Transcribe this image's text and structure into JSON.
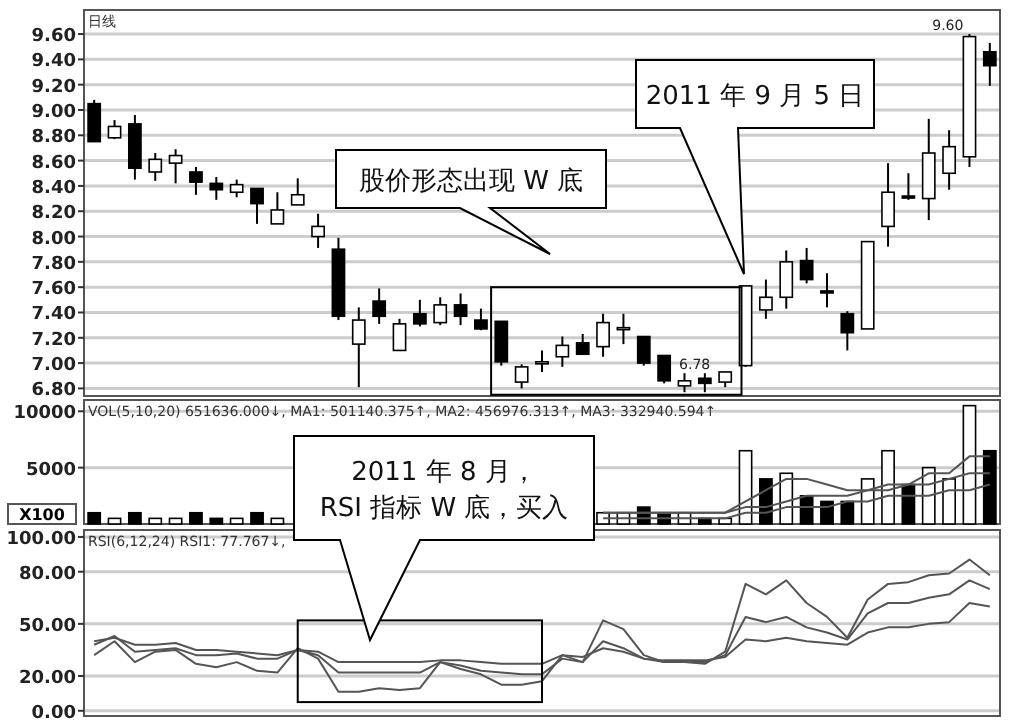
{
  "chart_data": [
    {
      "type": "candlestick",
      "title": "日线",
      "categories": [
        null,
        null,
        null,
        null,
        null,
        null,
        null,
        null,
        null,
        null,
        null,
        null,
        null,
        null,
        null,
        null,
        null,
        null,
        null,
        null,
        null,
        null,
        null,
        null,
        null,
        null,
        null,
        null,
        null,
        null,
        null,
        null,
        null,
        null,
        null,
        null,
        null,
        null,
        null,
        null,
        null,
        null,
        null,
        null,
        null
      ],
      "ohlc": [
        [
          9.05,
          9.08,
          8.75,
          8.75
        ],
        [
          8.78,
          8.92,
          8.77,
          8.87
        ],
        [
          8.89,
          8.96,
          8.45,
          8.54
        ],
        [
          8.51,
          8.66,
          8.44,
          8.61
        ],
        [
          8.58,
          8.69,
          8.42,
          8.64
        ],
        [
          8.51,
          8.55,
          8.33,
          8.43
        ],
        [
          8.42,
          8.47,
          8.29,
          8.37
        ],
        [
          8.35,
          8.45,
          8.31,
          8.41
        ],
        [
          8.38,
          8.38,
          8.1,
          8.26
        ],
        [
          8.1,
          8.35,
          8.1,
          8.21
        ],
        [
          8.25,
          8.46,
          8.25,
          8.33
        ],
        [
          8.0,
          8.18,
          7.91,
          8.08
        ],
        [
          7.9,
          7.99,
          7.34,
          7.37
        ],
        [
          7.15,
          7.44,
          6.81,
          7.34
        ],
        [
          7.49,
          7.59,
          7.31,
          7.37
        ],
        [
          7.1,
          7.35,
          7.1,
          7.31
        ],
        [
          7.39,
          7.5,
          7.29,
          7.31
        ],
        [
          7.32,
          7.52,
          7.3,
          7.46
        ],
        [
          7.46,
          7.55,
          7.3,
          7.37
        ],
        [
          7.34,
          7.43,
          7.26,
          7.27
        ],
        [
          7.33,
          7.33,
          6.98,
          7.01
        ],
        [
          6.85,
          6.99,
          6.8,
          6.97
        ],
        [
          7.0,
          7.1,
          6.93,
          7.01
        ],
        [
          7.05,
          7.21,
          6.97,
          7.14
        ],
        [
          7.16,
          7.23,
          7.07,
          7.07
        ],
        [
          7.13,
          7.39,
          7.05,
          7.32
        ],
        [
          7.27,
          7.39,
          7.15,
          7.28
        ],
        [
          7.21,
          7.21,
          6.98,
          7.0
        ],
        [
          7.06,
          7.06,
          6.84,
          6.86
        ],
        [
          6.82,
          6.92,
          6.77,
          6.86
        ],
        [
          6.88,
          6.92,
          6.77,
          6.84
        ],
        [
          6.85,
          6.93,
          6.81,
          6.93
        ],
        [
          6.98,
          7.61,
          6.97,
          7.61
        ],
        [
          7.42,
          7.66,
          7.35,
          7.52
        ],
        [
          7.52,
          7.89,
          7.43,
          7.8
        ],
        [
          7.81,
          7.91,
          7.63,
          7.66
        ],
        [
          7.57,
          7.71,
          7.44,
          7.56
        ],
        [
          7.39,
          7.41,
          7.1,
          7.24
        ],
        [
          7.27,
          7.96,
          7.27,
          7.96
        ],
        [
          8.08,
          8.58,
          7.92,
          8.35
        ],
        [
          8.32,
          8.5,
          8.29,
          8.31
        ],
        [
          8.3,
          8.93,
          8.13,
          8.66
        ],
        [
          8.5,
          8.84,
          8.37,
          8.71
        ],
        [
          8.63,
          9.6,
          8.55,
          9.58
        ],
        [
          9.46,
          9.53,
          9.19,
          9.35
        ]
      ],
      "ylim": [
        6.74,
        9.79
      ],
      "yticks": [
        {
          "value": 6.8,
          "label": "6.80"
        },
        {
          "value": 7.0,
          "label": "7.00"
        },
        {
          "value": 7.2,
          "label": "7.20"
        },
        {
          "value": 7.4,
          "label": "7.40"
        },
        {
          "value": 7.6,
          "label": "7.60"
        },
        {
          "value": 7.8,
          "label": "7.80"
        },
        {
          "value": 8.0,
          "label": "8.00"
        },
        {
          "value": 8.2,
          "label": "8.20"
        },
        {
          "value": 8.4,
          "label": "8.40"
        },
        {
          "value": 8.6,
          "label": "8.60"
        },
        {
          "value": 8.8,
          "label": "8.80"
        },
        {
          "value": 9.0,
          "label": "9.00"
        },
        {
          "value": 9.2,
          "label": "9.20"
        },
        {
          "value": 9.4,
          "label": "9.40"
        },
        {
          "value": 9.6,
          "label": "9.60"
        }
      ],
      "grid": "y",
      "annotations": [
        "9.60",
        "6.78",
        "股价形态出现 W 底",
        "2011 年 9 月 5 日"
      ]
    },
    {
      "type": "bar",
      "title": "VOL(5,10,20) 651636.000↓, MA1: 501140.375↑, MA2: 456976.313↑, MA3: 332940.594↑",
      "ylabel": "X100",
      "categories": [
        null,
        null,
        null,
        null,
        null,
        null,
        null,
        null,
        null,
        null,
        null,
        null,
        null,
        null,
        null,
        null,
        null,
        null,
        null,
        null,
        null,
        null,
        null,
        null,
        null,
        null,
        null,
        null,
        null,
        null,
        null,
        null,
        null,
        null,
        null,
        null,
        null,
        null,
        null,
        null,
        null,
        null,
        null,
        null,
        null
      ],
      "series": [
        {
          "type": "bar",
          "values": [
            1000,
            500,
            1000,
            500,
            500,
            1000,
            500,
            500,
            1000,
            500,
            null,
            null,
            null,
            null,
            null,
            null,
            null,
            null,
            null,
            null,
            null,
            null,
            null,
            null,
            null,
            1000,
            1000,
            1500,
            1000,
            1000,
            500,
            500,
            6500,
            4000,
            4500,
            2500,
            2000,
            2000,
            4000,
            6500,
            3500,
            5000,
            4000,
            10500,
            6500
          ],
          "colors": [
            "#000000",
            "#ffffff",
            "#000000",
            "#ffffff",
            "#ffffff",
            "#000000",
            "#000000",
            "#ffffff",
            "#000000",
            "#ffffff",
            null,
            null,
            null,
            null,
            null,
            null,
            null,
            null,
            null,
            null,
            null,
            null,
            null,
            null,
            null,
            "#ffffff",
            "#ffffff",
            "#000000",
            "#000000",
            "#ffffff",
            "#000000",
            "#ffffff",
            "#ffffff",
            "#000000",
            "#ffffff",
            "#000000",
            "#000000",
            "#000000",
            "#ffffff",
            "#ffffff",
            "#000000",
            "#ffffff",
            "#ffffff",
            "#ffffff",
            "#000000"
          ]
        },
        {
          "type": "line",
          "color": "#555555",
          "values": [
            null,
            null,
            null,
            null,
            null,
            null,
            null,
            null,
            null,
            null,
            null,
            null,
            null,
            null,
            null,
            null,
            null,
            null,
            null,
            null,
            null,
            null,
            null,
            null,
            null,
            1000,
            1000,
            1000,
            1000,
            1000,
            1000,
            1000,
            2000,
            3000,
            4000,
            4000,
            3500,
            3000,
            3000,
            3500,
            3500,
            4500,
            4500,
            6000,
            6000
          ]
        },
        {
          "type": "line",
          "color": "#555555",
          "values": [
            null,
            null,
            null,
            null,
            null,
            null,
            null,
            null,
            null,
            null,
            null,
            null,
            null,
            null,
            null,
            null,
            null,
            null,
            null,
            null,
            null,
            null,
            null,
            null,
            null,
            1000,
            1000,
            1000,
            1000,
            1000,
            1000,
            1000,
            1500,
            1500,
            2000,
            2500,
            2500,
            2500,
            3000,
            3000,
            3500,
            3500,
            4000,
            4500,
            4500
          ]
        },
        {
          "type": "line",
          "color": "#555555",
          "values": [
            null,
            null,
            null,
            null,
            null,
            null,
            null,
            null,
            null,
            null,
            null,
            null,
            null,
            null,
            null,
            null,
            null,
            null,
            null,
            null,
            null,
            null,
            null,
            null,
            null,
            500,
            500,
            500,
            500,
            500,
            500,
            500,
            1000,
            1000,
            1500,
            1500,
            1500,
            2000,
            2000,
            2500,
            2500,
            2500,
            3000,
            3000,
            3500
          ]
        }
      ],
      "ylim": [
        0,
        11000
      ],
      "yticks": [
        5000,
        10000
      ],
      "grid": "y",
      "annotations": [
        "2011 年 8 月，\nRSI 指标 W 底，买入"
      ]
    },
    {
      "type": "line",
      "title": "RSI(6,12,24) RSI1: 77.767↓,",
      "categories": [
        null,
        null,
        null,
        null,
        null,
        null,
        null,
        null,
        null,
        null,
        null,
        null,
        null,
        null,
        null,
        null,
        null,
        null,
        null,
        null,
        null,
        null,
        null,
        null,
        null,
        null,
        null,
        null,
        null,
        null,
        null,
        null,
        null,
        null,
        null,
        null,
        null,
        null,
        null,
        null,
        null,
        null,
        null,
        null,
        null
      ],
      "series": [
        {
          "color": "#555555",
          "values": [
            32,
            40,
            28,
            34,
            35,
            27,
            25,
            28,
            23,
            22,
            36,
            30,
            11,
            11,
            13,
            12,
            13,
            28,
            24,
            21,
            15,
            15,
            17,
            32,
            28,
            52,
            47,
            32,
            28,
            28,
            27,
            34,
            73,
            67,
            75,
            62,
            54,
            42,
            64,
            73,
            74,
            78,
            79,
            87,
            78
          ]
        },
        {
          "color": "#555555",
          "values": [
            38,
            43,
            34,
            35,
            36,
            32,
            32,
            33,
            30,
            30,
            35,
            32,
            22,
            22,
            22,
            22,
            22,
            28,
            26,
            23,
            22,
            21,
            21,
            30,
            28,
            40,
            36,
            30,
            28,
            28,
            28,
            32,
            54,
            51,
            54,
            48,
            45,
            41,
            56,
            62,
            62,
            65,
            67,
            75,
            70
          ]
        },
        {
          "color": "#555555",
          "values": [
            40,
            42,
            38,
            38,
            39,
            35,
            35,
            34,
            33,
            32,
            35,
            34,
            28,
            28,
            28,
            28,
            28,
            29,
            29,
            28,
            27,
            27,
            27,
            32,
            31,
            36,
            34,
            30,
            29,
            29,
            29,
            31,
            41,
            40,
            42,
            40,
            39,
            38,
            45,
            48,
            48,
            50,
            51,
            62,
            60
          ]
        }
      ],
      "ylim": [
        -3,
        104
      ],
      "yticks": [
        {
          "value": 0,
          "label": "0.00"
        },
        {
          "value": 20,
          "label": "20.00"
        },
        {
          "value": 50,
          "label": "50.00"
        },
        {
          "value": 80,
          "label": "80.00"
        },
        {
          "value": 100,
          "label": "100.00"
        }
      ],
      "grid": "y"
    }
  ]
}
